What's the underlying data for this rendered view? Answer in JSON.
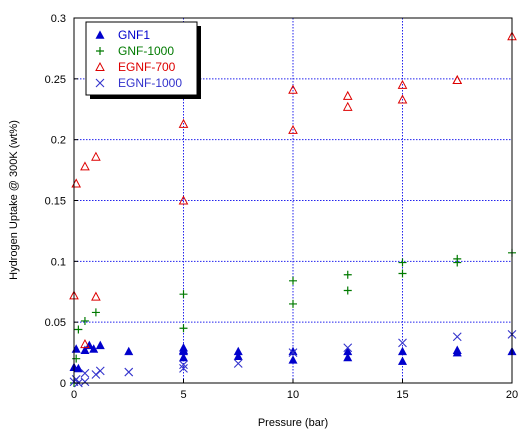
{
  "chart_data": {
    "type": "scatter",
    "xlabel": "Pressure (bar)",
    "ylabel": "Hydrogen Uptake @ 300K (wt%)",
    "xlim": [
      0,
      20
    ],
    "ylim": [
      0,
      0.3
    ],
    "xticks": [
      0,
      5,
      10,
      15,
      20
    ],
    "yticks": [
      0,
      0.05,
      0.1,
      0.15,
      0.2,
      0.25,
      0.3
    ],
    "grid": true,
    "legend_position": "top-left",
    "series": [
      {
        "name": "GNF1",
        "marker": "filled-triangle",
        "color": "#0000cc",
        "points": [
          [
            0,
            0.013
          ],
          [
            0.1,
            0.028
          ],
          [
            0.2,
            0.012
          ],
          [
            0.5,
            0.027
          ],
          [
            0.9,
            0.028
          ],
          [
            1.2,
            0.031
          ],
          [
            0.7,
            0.031
          ],
          [
            2.5,
            0.026
          ],
          [
            5,
            0.027
          ],
          [
            5,
            0.029
          ],
          [
            5,
            0.021
          ],
          [
            5,
            0.026
          ],
          [
            7.5,
            0.026
          ],
          [
            7.5,
            0.022
          ],
          [
            10,
            0.026
          ],
          [
            10,
            0.019
          ],
          [
            12.5,
            0.021
          ],
          [
            12.5,
            0.026
          ],
          [
            15,
            0.026
          ],
          [
            15,
            0.018
          ],
          [
            17.5,
            0.025
          ],
          [
            17.5,
            0.027
          ],
          [
            20,
            0.026
          ]
        ]
      },
      {
        "name": "GNF-1000",
        "marker": "plus",
        "color": "#007a00",
        "points": [
          [
            0,
            0.0
          ],
          [
            0.1,
            0.02
          ],
          [
            0.2,
            0.044
          ],
          [
            0.5,
            0.051
          ],
          [
            1,
            0.058
          ],
          [
            5,
            0.073
          ],
          [
            5,
            0.045
          ],
          [
            10,
            0.084
          ],
          [
            10,
            0.065
          ],
          [
            12.5,
            0.089
          ],
          [
            12.5,
            0.076
          ],
          [
            15,
            0.099
          ],
          [
            15,
            0.09
          ],
          [
            17.5,
            0.102
          ],
          [
            17.5,
            0.099
          ],
          [
            20,
            0.107
          ]
        ]
      },
      {
        "name": "EGNF-700",
        "marker": "open-triangle",
        "color": "#dd0000",
        "points": [
          [
            0,
            0.072
          ],
          [
            0.1,
            0.164
          ],
          [
            0.5,
            0.178
          ],
          [
            1,
            0.186
          ],
          [
            1,
            0.071
          ],
          [
            0.5,
            0.032
          ],
          [
            5,
            0.213
          ],
          [
            5,
            0.15
          ],
          [
            10,
            0.241
          ],
          [
            10,
            0.208
          ],
          [
            12.5,
            0.236
          ],
          [
            12.5,
            0.227
          ],
          [
            15,
            0.245
          ],
          [
            15,
            0.233
          ],
          [
            17.5,
            0.249
          ],
          [
            17.5,
            0.249
          ],
          [
            20,
            0.285
          ]
        ]
      },
      {
        "name": "EGNF-1000",
        "marker": "x",
        "color": "#3333cc",
        "points": [
          [
            0,
            0.001
          ],
          [
            0.1,
            0.003
          ],
          [
            0.2,
            0.0
          ],
          [
            0.5,
            0.008
          ],
          [
            0.5,
            0.001
          ],
          [
            1,
            0.007
          ],
          [
            1.2,
            0.01
          ],
          [
            2.5,
            0.009
          ],
          [
            5,
            0.015
          ],
          [
            5,
            0.012
          ],
          [
            7.5,
            0.016
          ],
          [
            10,
            0.025
          ],
          [
            12.5,
            0.029
          ],
          [
            15,
            0.033
          ],
          [
            17.5,
            0.038
          ],
          [
            20,
            0.04
          ]
        ]
      }
    ]
  }
}
